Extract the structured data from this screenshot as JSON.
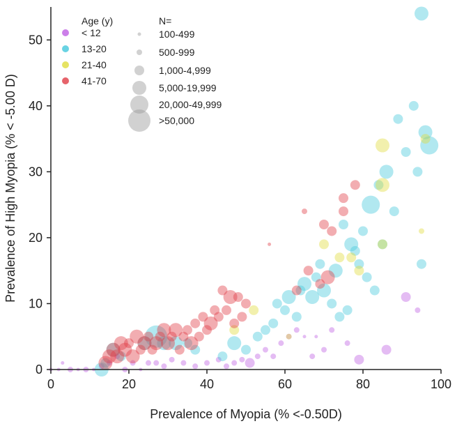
{
  "chart_data": {
    "type": "scatter",
    "title": "",
    "xlabel": "Prevalence of Myopia (% <-0.50D)",
    "ylabel": "Prevalence of High Myopia (% < -5.00 D)",
    "xlim": [
      0,
      100
    ],
    "ylim": [
      0,
      55
    ],
    "x_ticks": [
      0,
      20,
      40,
      60,
      80,
      100
    ],
    "y_ticks": [
      0,
      10,
      20,
      30,
      40,
      50
    ],
    "x_tick_labels": [
      "0",
      "20",
      "40",
      "60",
      "80",
      "100"
    ],
    "y_tick_labels": [
      "0",
      "10",
      "20",
      "30",
      "40",
      "50"
    ],
    "grid": false,
    "legend_position": "top-left",
    "legend": {
      "age_title": "Age (y)",
      "age_groups": [
        {
          "label": "< 12",
          "color": "#bf5fe3"
        },
        {
          "label": "13-20",
          "color": "#44c8dc"
        },
        {
          "label": "21-40",
          "color": "#e0dc3c"
        },
        {
          "label": "41-70",
          "color": "#e03c46"
        }
      ],
      "size_title": "N=",
      "size_groups": [
        {
          "label": "100-499",
          "size_class": 1
        },
        {
          "label": "500-999",
          "size_class": 2
        },
        {
          "label": "1,000-4,999",
          "size_class": 3
        },
        {
          "label": "5,000-19,999",
          "size_class": 4
        },
        {
          "label": "20,000-49,999",
          "size_class": 5
        },
        {
          "label": ">50,000",
          "size_class": 6
        }
      ]
    },
    "series": [
      {
        "name": "< 12",
        "color": "#bf5fe3",
        "points": [
          {
            "x": 0,
            "y": 0,
            "n": 1
          },
          {
            "x": 2,
            "y": 0,
            "n": 1
          },
          {
            "x": 3,
            "y": 1,
            "n": 1
          },
          {
            "x": 5,
            "y": 0,
            "n": 2
          },
          {
            "x": 7,
            "y": 0,
            "n": 1
          },
          {
            "x": 9,
            "y": 0,
            "n": 2
          },
          {
            "x": 11,
            "y": 0,
            "n": 1
          },
          {
            "x": 13,
            "y": 0.5,
            "n": 2
          },
          {
            "x": 15,
            "y": 1,
            "n": 2
          },
          {
            "x": 17,
            "y": 2,
            "n": 2
          },
          {
            "x": 19,
            "y": 0,
            "n": 2
          },
          {
            "x": 21,
            "y": 1,
            "n": 2
          },
          {
            "x": 23,
            "y": 0,
            "n": 1
          },
          {
            "x": 25,
            "y": 1,
            "n": 2
          },
          {
            "x": 27,
            "y": 1,
            "n": 2
          },
          {
            "x": 29,
            "y": 0.5,
            "n": 2
          },
          {
            "x": 31,
            "y": 1.5,
            "n": 2
          },
          {
            "x": 34,
            "y": 1,
            "n": 2
          },
          {
            "x": 37,
            "y": 0.5,
            "n": 2
          },
          {
            "x": 40,
            "y": 1,
            "n": 2
          },
          {
            "x": 43,
            "y": 1.5,
            "n": 2
          },
          {
            "x": 45,
            "y": 0.5,
            "n": 2
          },
          {
            "x": 47,
            "y": 1,
            "n": 2
          },
          {
            "x": 49,
            "y": 1.5,
            "n": 2
          },
          {
            "x": 51,
            "y": 1,
            "n": 3
          },
          {
            "x": 53,
            "y": 2,
            "n": 2
          },
          {
            "x": 55,
            "y": 3,
            "n": 2
          },
          {
            "x": 57,
            "y": 2,
            "n": 2
          },
          {
            "x": 59,
            "y": 4,
            "n": 2
          },
          {
            "x": 61,
            "y": 5,
            "n": 2
          },
          {
            "x": 63,
            "y": 6,
            "n": 2
          },
          {
            "x": 65,
            "y": 5,
            "n": 1
          },
          {
            "x": 67,
            "y": 2,
            "n": 2
          },
          {
            "x": 68,
            "y": 5,
            "n": 1
          },
          {
            "x": 70,
            "y": 3,
            "n": 2
          },
          {
            "x": 72,
            "y": 6,
            "n": 2
          },
          {
            "x": 76,
            "y": 4,
            "n": 2
          },
          {
            "x": 79,
            "y": 1.5,
            "n": 3
          },
          {
            "x": 86,
            "y": 3,
            "n": 3
          },
          {
            "x": 91,
            "y": 11,
            "n": 3
          },
          {
            "x": 94,
            "y": 9,
            "n": 2
          }
        ]
      },
      {
        "name": "13-20",
        "color": "#44c8dc",
        "points": [
          {
            "x": 13,
            "y": 0,
            "n": 4
          },
          {
            "x": 14,
            "y": 1,
            "n": 3
          },
          {
            "x": 16,
            "y": 3,
            "n": 4
          },
          {
            "x": 18,
            "y": 2,
            "n": 3
          },
          {
            "x": 24,
            "y": 4,
            "n": 4
          },
          {
            "x": 27,
            "y": 5,
            "n": 6
          },
          {
            "x": 29,
            "y": 4,
            "n": 4
          },
          {
            "x": 32,
            "y": 4,
            "n": 4
          },
          {
            "x": 35,
            "y": 4,
            "n": 3
          },
          {
            "x": 37,
            "y": 3,
            "n": 3
          },
          {
            "x": 44,
            "y": 2,
            "n": 3
          },
          {
            "x": 47,
            "y": 4,
            "n": 4
          },
          {
            "x": 50,
            "y": 3,
            "n": 3
          },
          {
            "x": 53,
            "y": 5,
            "n": 3
          },
          {
            "x": 55,
            "y": 6,
            "n": 3
          },
          {
            "x": 57,
            "y": 7,
            "n": 3
          },
          {
            "x": 58,
            "y": 10,
            "n": 3
          },
          {
            "x": 60,
            "y": 9,
            "n": 3
          },
          {
            "x": 61,
            "y": 11,
            "n": 4
          },
          {
            "x": 63,
            "y": 8,
            "n": 3
          },
          {
            "x": 64,
            "y": 12,
            "n": 3
          },
          {
            "x": 65,
            "y": 13,
            "n": 4
          },
          {
            "x": 67,
            "y": 11,
            "n": 4
          },
          {
            "x": 68,
            "y": 14,
            "n": 3
          },
          {
            "x": 69,
            "y": 16,
            "n": 3
          },
          {
            "x": 70,
            "y": 12,
            "n": 4
          },
          {
            "x": 72,
            "y": 10,
            "n": 3
          },
          {
            "x": 73,
            "y": 15,
            "n": 4
          },
          {
            "x": 74,
            "y": 8,
            "n": 3
          },
          {
            "x": 75,
            "y": 22,
            "n": 3
          },
          {
            "x": 76,
            "y": 9,
            "n": 3
          },
          {
            "x": 77,
            "y": 19,
            "n": 4
          },
          {
            "x": 78,
            "y": 18,
            "n": 3
          },
          {
            "x": 79,
            "y": 16,
            "n": 3
          },
          {
            "x": 80,
            "y": 21,
            "n": 3
          },
          {
            "x": 81,
            "y": 14,
            "n": 3
          },
          {
            "x": 82,
            "y": 25,
            "n": 5
          },
          {
            "x": 83,
            "y": 12,
            "n": 3
          },
          {
            "x": 84,
            "y": 28,
            "n": 3
          },
          {
            "x": 85,
            "y": 19,
            "n": 3
          },
          {
            "x": 86,
            "y": 30,
            "n": 4
          },
          {
            "x": 88,
            "y": 24,
            "n": 3
          },
          {
            "x": 89,
            "y": 38,
            "n": 3
          },
          {
            "x": 91,
            "y": 33,
            "n": 3
          },
          {
            "x": 93,
            "y": 40,
            "n": 3
          },
          {
            "x": 94,
            "y": 30,
            "n": 3
          },
          {
            "x": 95,
            "y": 16,
            "n": 3
          },
          {
            "x": 95,
            "y": 54,
            "n": 4
          },
          {
            "x": 96,
            "y": 36,
            "n": 4
          },
          {
            "x": 97,
            "y": 34,
            "n": 5
          }
        ]
      },
      {
        "name": "21-40",
        "color": "#e0dc3c",
        "points": [
          {
            "x": 47,
            "y": 6,
            "n": 3
          },
          {
            "x": 52,
            "y": 9,
            "n": 3
          },
          {
            "x": 61,
            "y": 5,
            "n": 2
          },
          {
            "x": 70,
            "y": 19,
            "n": 3
          },
          {
            "x": 74,
            "y": 17,
            "n": 3
          },
          {
            "x": 77,
            "y": 17,
            "n": 3
          },
          {
            "x": 79,
            "y": 15,
            "n": 3
          },
          {
            "x": 85,
            "y": 19,
            "n": 3
          },
          {
            "x": 85,
            "y": 28,
            "n": 4
          },
          {
            "x": 85,
            "y": 34,
            "n": 4
          },
          {
            "x": 95,
            "y": 21,
            "n": 2
          },
          {
            "x": 96,
            "y": 35,
            "n": 3
          }
        ]
      },
      {
        "name": "41-70",
        "color": "#e03c46",
        "points": [
          {
            "x": 14,
            "y": 1,
            "n": 4
          },
          {
            "x": 15,
            "y": 2,
            "n": 4
          },
          {
            "x": 16,
            "y": 3,
            "n": 4
          },
          {
            "x": 17,
            "y": 2,
            "n": 4
          },
          {
            "x": 18,
            "y": 4,
            "n": 4
          },
          {
            "x": 19,
            "y": 3,
            "n": 4
          },
          {
            "x": 20,
            "y": 4,
            "n": 3
          },
          {
            "x": 21,
            "y": 2,
            "n": 4
          },
          {
            "x": 22,
            "y": 5,
            "n": 4
          },
          {
            "x": 23,
            "y": 3,
            "n": 3
          },
          {
            "x": 24,
            "y": 4,
            "n": 4
          },
          {
            "x": 25,
            "y": 5,
            "n": 3
          },
          {
            "x": 26,
            "y": 3,
            "n": 3
          },
          {
            "x": 27,
            "y": 4,
            "n": 4
          },
          {
            "x": 28,
            "y": 5,
            "n": 3
          },
          {
            "x": 29,
            "y": 6,
            "n": 4
          },
          {
            "x": 30,
            "y": 4,
            "n": 4
          },
          {
            "x": 31,
            "y": 5,
            "n": 3
          },
          {
            "x": 32,
            "y": 6,
            "n": 4
          },
          {
            "x": 33,
            "y": 3,
            "n": 3
          },
          {
            "x": 34,
            "y": 5,
            "n": 3
          },
          {
            "x": 35,
            "y": 6,
            "n": 3
          },
          {
            "x": 36,
            "y": 4,
            "n": 4
          },
          {
            "x": 37,
            "y": 7,
            "n": 3
          },
          {
            "x": 38,
            "y": 5,
            "n": 3
          },
          {
            "x": 39,
            "y": 8,
            "n": 3
          },
          {
            "x": 40,
            "y": 6,
            "n": 3
          },
          {
            "x": 41,
            "y": 7,
            "n": 4
          },
          {
            "x": 42,
            "y": 9,
            "n": 3
          },
          {
            "x": 43,
            "y": 8,
            "n": 3
          },
          {
            "x": 44,
            "y": 12,
            "n": 3
          },
          {
            "x": 45,
            "y": 9,
            "n": 3
          },
          {
            "x": 46,
            "y": 11,
            "n": 4
          },
          {
            "x": 47,
            "y": 7,
            "n": 3
          },
          {
            "x": 48,
            "y": 11,
            "n": 3
          },
          {
            "x": 49,
            "y": 8,
            "n": 3
          },
          {
            "x": 50,
            "y": 10,
            "n": 3
          },
          {
            "x": 56,
            "y": 19,
            "n": 1
          },
          {
            "x": 63,
            "y": 12,
            "n": 3
          },
          {
            "x": 65,
            "y": 24,
            "n": 2
          },
          {
            "x": 66,
            "y": 15,
            "n": 3
          },
          {
            "x": 69,
            "y": 13,
            "n": 3
          },
          {
            "x": 70,
            "y": 22,
            "n": 3
          },
          {
            "x": 71,
            "y": 14,
            "n": 4
          },
          {
            "x": 72,
            "y": 21,
            "n": 3
          },
          {
            "x": 75,
            "y": 26,
            "n": 3
          },
          {
            "x": 75,
            "y": 24,
            "n": 3
          },
          {
            "x": 78,
            "y": 28,
            "n": 3
          }
        ]
      }
    ]
  }
}
